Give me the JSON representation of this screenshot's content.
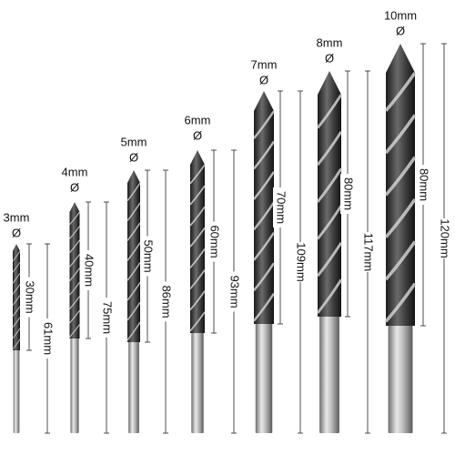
{
  "bits": [
    {
      "diameter": "3mm",
      "symbol": "Ø",
      "flute_length": "30mm",
      "total_length": "61mm"
    },
    {
      "diameter": "4mm",
      "symbol": "Ø",
      "flute_length": "40mm",
      "total_length": "75mm"
    },
    {
      "diameter": "5mm",
      "symbol": "Ø",
      "flute_length": "50mm",
      "total_length": "86mm"
    },
    {
      "diameter": "6mm",
      "symbol": "Ø",
      "flute_length": "60mm",
      "total_length": "93mm"
    },
    {
      "diameter": "7mm",
      "symbol": "Ø",
      "flute_length": "70mm",
      "total_length": "109mm"
    },
    {
      "diameter": "8mm",
      "symbol": "Ø",
      "flute_length": "80mm",
      "total_length": "117mm"
    },
    {
      "diameter": "10mm",
      "symbol": "Ø",
      "flute_length": "80mm",
      "total_length": "120mm"
    }
  ]
}
